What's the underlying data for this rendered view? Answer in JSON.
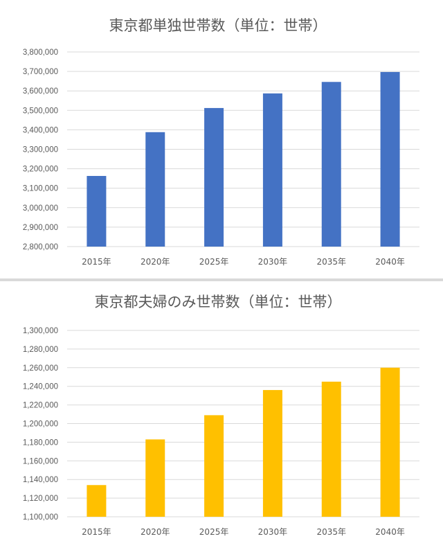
{
  "chart_data": [
    {
      "type": "bar",
      "title": "東京都単独世帯数（単位：世帯）",
      "categories": [
        "2015年",
        "2020年",
        "2025年",
        "2030年",
        "2035年",
        "2040年"
      ],
      "series": [
        {
          "values": [
            3163000,
            3388000,
            3512000,
            3587000,
            3646000,
            3697000
          ]
        }
      ],
      "ylim": [
        2800000,
        3800000
      ],
      "ytick_step": 100000,
      "yticks": [
        "2,800,000",
        "2,900,000",
        "3,000,000",
        "3,100,000",
        "3,200,000",
        "3,300,000",
        "3,400,000",
        "3,500,000",
        "3,600,000",
        "3,700,000",
        "3,800,000"
      ],
      "color": "#4472c4",
      "grid": true,
      "xlabel": "",
      "ylabel": ""
    },
    {
      "type": "bar",
      "title": "東京都夫婦のみ世帯数（単位：世帯）",
      "categories": [
        "2015年",
        "2020年",
        "2025年",
        "2030年",
        "2035年",
        "2040年"
      ],
      "series": [
        {
          "values": [
            1134000,
            1183000,
            1209000,
            1236000,
            1245000,
            1260000
          ]
        }
      ],
      "ylim": [
        1100000,
        1300000
      ],
      "ytick_step": 20000,
      "yticks": [
        "1,100,000",
        "1,120,000",
        "1,140,000",
        "1,160,000",
        "1,180,000",
        "1,200,000",
        "1,220,000",
        "1,240,000",
        "1,260,000",
        "1,280,000",
        "1,300,000"
      ],
      "color": "#ffc000",
      "grid": true,
      "xlabel": "",
      "ylabel": ""
    }
  ]
}
